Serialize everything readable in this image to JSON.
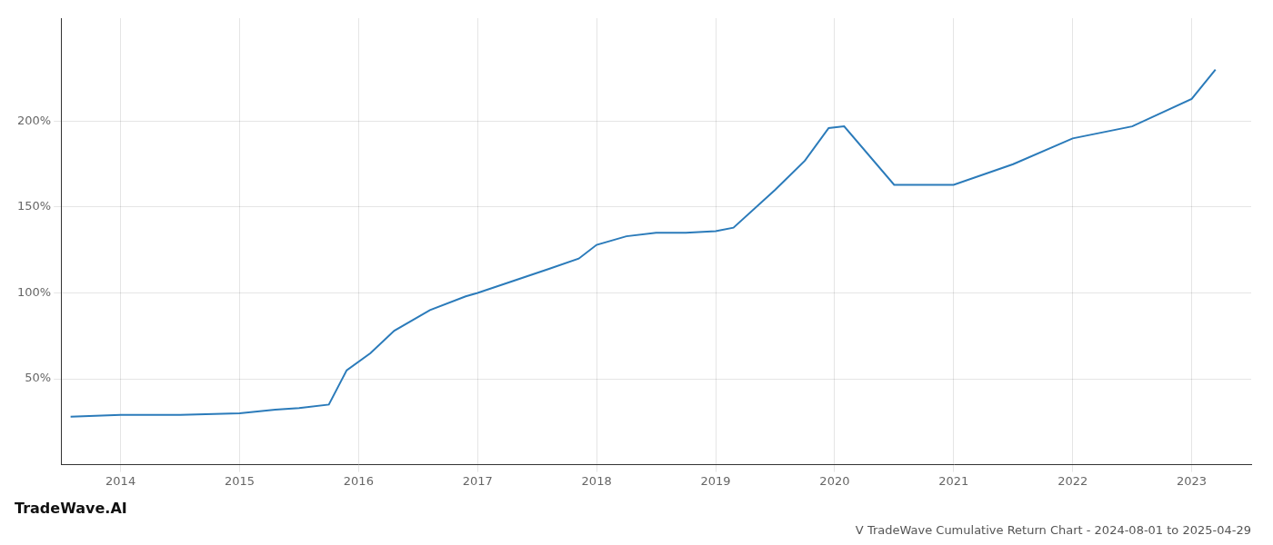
{
  "chart_data": {
    "type": "line",
    "title": "V TradeWave Cumulative Return Chart - 2024-08-01 to 2025-04-29",
    "annotations": [
      "TradeWave.AI"
    ],
    "x": [
      2013.58,
      2014.0,
      2014.5,
      2015.0,
      2015.3,
      2015.5,
      2015.75,
      2015.9,
      2016.1,
      2016.3,
      2016.6,
      2016.9,
      2017.0,
      2017.3,
      2017.6,
      2017.85,
      2018.0,
      2018.25,
      2018.5,
      2018.75,
      2019.0,
      2019.15,
      2019.5,
      2019.75,
      2019.95,
      2020.08,
      2020.5,
      2021.0,
      2021.5,
      2022.0,
      2022.5,
      2023.0,
      2023.2
    ],
    "values": [
      28,
      29,
      29,
      30,
      32,
      33,
      35,
      55,
      65,
      78,
      90,
      98,
      100,
      107,
      114,
      120,
      128,
      133,
      135,
      135,
      136,
      138,
      160,
      177,
      196,
      197,
      163,
      163,
      175,
      190,
      197,
      213,
      230
    ],
    "color": "#2b7bba",
    "xlim": [
      2013.5,
      2023.5
    ],
    "xticks": [
      2014,
      2015,
      2016,
      2017,
      2018,
      2019,
      2020,
      2021,
      2022,
      2023
    ],
    "ylim": [
      0,
      260
    ],
    "yticks": [
      {
        "value": 50,
        "label": "50%"
      },
      {
        "value": 100,
        "label": "100%"
      },
      {
        "value": 150,
        "label": "150%"
      },
      {
        "value": 200,
        "label": "200%"
      }
    ],
    "grid": true
  }
}
